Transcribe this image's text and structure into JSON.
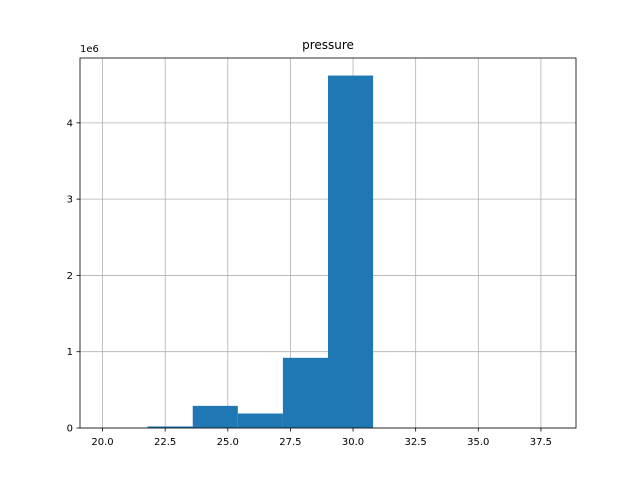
{
  "chart_data": {
    "type": "bar",
    "title": "pressure",
    "xlabel": "",
    "ylabel": "",
    "y_offset_label": "1e6",
    "xlim": [
      19.1,
      38.9
    ],
    "ylim": [
      0,
      4.85
    ],
    "x_ticks": [
      20.0,
      22.5,
      25.0,
      27.5,
      30.0,
      32.5,
      35.0,
      37.5
    ],
    "x_tick_labels": [
      "20.0",
      "22.5",
      "25.0",
      "27.5",
      "30.0",
      "32.5",
      "35.0",
      "37.5"
    ],
    "y_ticks": [
      0,
      1,
      2,
      3,
      4
    ],
    "y_tick_labels": [
      "0",
      "1",
      "2",
      "3",
      "4"
    ],
    "grid": true,
    "bar_color": "#1f77b4",
    "bins": [
      {
        "x0": 20.0,
        "x1": 21.8,
        "value": 0.0
      },
      {
        "x0": 21.8,
        "x1": 23.6,
        "value": 0.02
      },
      {
        "x0": 23.6,
        "x1": 25.4,
        "value": 0.29
      },
      {
        "x0": 25.4,
        "x1": 27.2,
        "value": 0.19
      },
      {
        "x0": 27.2,
        "x1": 29.0,
        "value": 0.92
      },
      {
        "x0": 29.0,
        "x1": 30.8,
        "value": 4.62
      },
      {
        "x0": 30.8,
        "x1": 32.6,
        "value": 0.0
      },
      {
        "x0": 32.6,
        "x1": 34.4,
        "value": 0.0
      },
      {
        "x0": 34.4,
        "x1": 36.2,
        "value": 0.0
      },
      {
        "x0": 36.2,
        "x1": 38.0,
        "value": 0.0
      }
    ]
  }
}
